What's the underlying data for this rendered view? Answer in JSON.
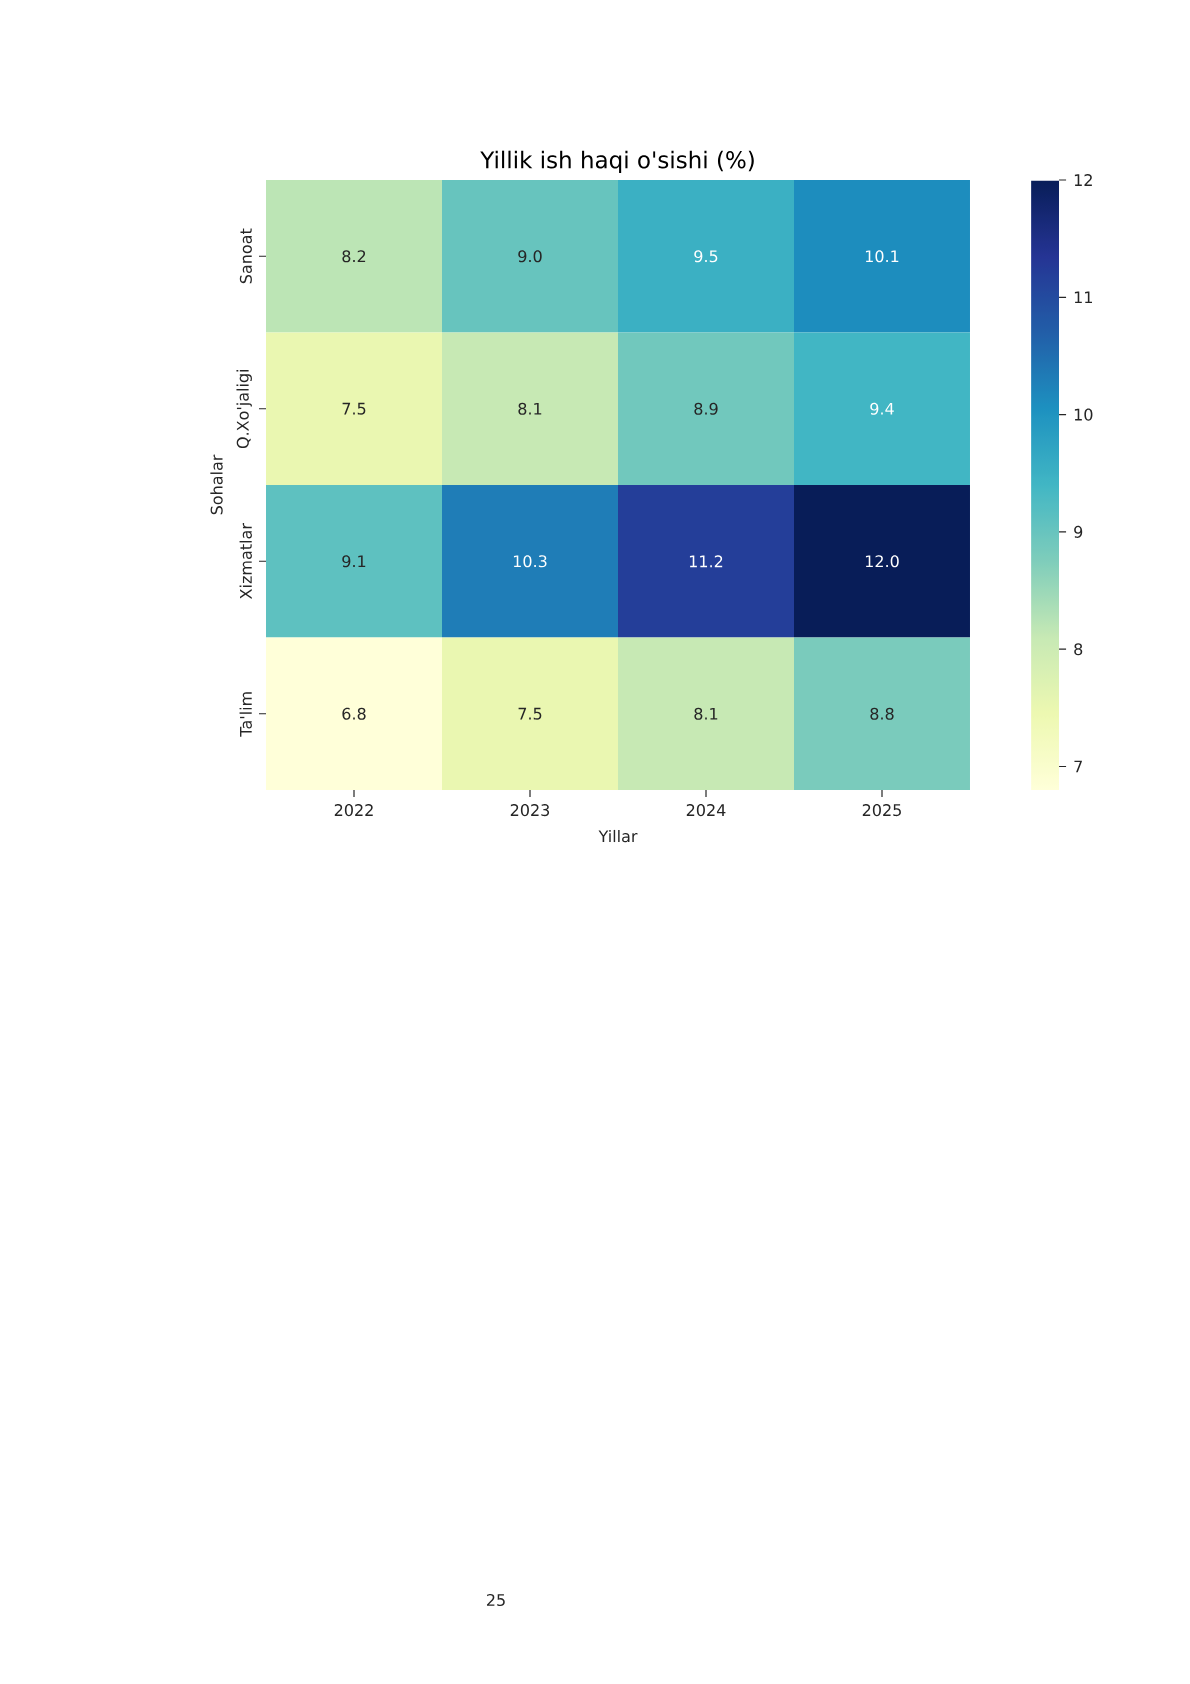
{
  "chart_data": {
    "type": "heatmap",
    "title": "Yillik ish haqi o'sishi (%)",
    "xlabel": "Yillar",
    "ylabel": "Sohalar",
    "categories": [
      "2022",
      "2023",
      "2024",
      "2025"
    ],
    "y_categories": [
      "Sanoat",
      "Q.Xo'jaligi",
      "Xizmatlar",
      "Ta'lim"
    ],
    "cells": [
      [
        8.2,
        9.0,
        9.5,
        10.1
      ],
      [
        7.5,
        8.1,
        8.9,
        9.4
      ],
      [
        9.1,
        10.3,
        11.2,
        12.0
      ],
      [
        6.8,
        7.5,
        8.1,
        8.8
      ]
    ],
    "cell_labels": [
      [
        "8.2",
        "9.0",
        "9.5",
        "10.1"
      ],
      [
        "7.5",
        "8.1",
        "8.9",
        "9.4"
      ],
      [
        "9.1",
        "10.3",
        "11.2",
        "12.0"
      ],
      [
        "6.8",
        "7.5",
        "8.1",
        "8.8"
      ]
    ],
    "clim": [
      6.8,
      12.0
    ],
    "cticks": [
      7,
      8,
      9,
      10,
      11,
      12
    ],
    "data_labels": true,
    "annotations": [
      "25"
    ]
  }
}
